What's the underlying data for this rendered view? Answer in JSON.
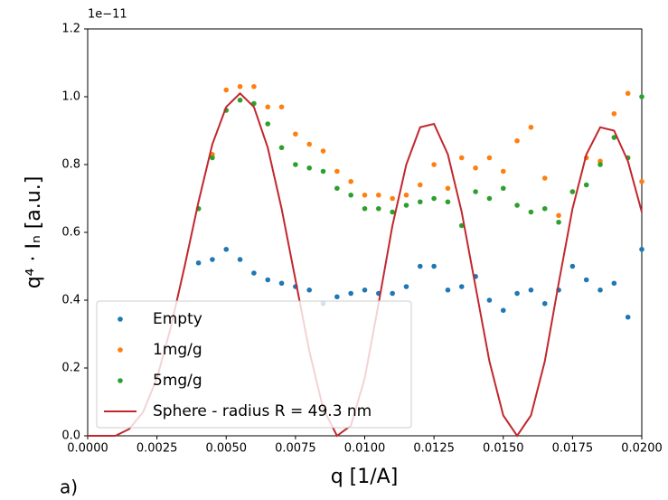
{
  "chart_data": {
    "type": "scatter",
    "annotation": "a)",
    "offset_text": "1e−11",
    "x_label": "q [1/A]",
    "y_label": "q⁴ · Iₙ [a.u.]",
    "xlim": [
      0,
      0.02
    ],
    "ylim": [
      0,
      1.2
    ],
    "xticks": [
      {
        "value": 0,
        "label": "0.0000"
      },
      0.0025,
      {
        "value": 0.005,
        "label": "0.0050"
      },
      0.0075,
      {
        "value": 0.01,
        "label": "0.0100"
      },
      0.0125,
      {
        "value": 0.015,
        "label": "0.0150"
      },
      0.0175,
      {
        "value": 0.02,
        "label": "0.0200"
      }
    ],
    "yticks": [
      {
        "value": 0,
        "label": "0.0"
      },
      0.2,
      0.4,
      0.6,
      0.8,
      {
        "value": 1,
        "label": "1.0"
      },
      1.2
    ],
    "legend": "lower left",
    "series": [
      {
        "name": "Empty",
        "color": "#1f77b4",
        "kind": "scatter",
        "x": [
          0.004,
          0.0045,
          0.005,
          0.0055,
          0.006,
          0.0065,
          0.007,
          0.0075,
          0.008,
          0.0085,
          0.009,
          0.0095,
          0.01,
          0.0105,
          0.011,
          0.0115,
          0.012,
          0.0125,
          0.013,
          0.0135,
          0.014,
          0.0145,
          0.015,
          0.0155,
          0.016,
          0.0165,
          0.017,
          0.0175,
          0.018,
          0.0185,
          0.019,
          0.0195,
          0.02
        ],
        "values": [
          0.51,
          0.52,
          0.55,
          0.52,
          0.48,
          0.46,
          0.45,
          0.44,
          0.43,
          0.39,
          0.41,
          0.42,
          0.43,
          0.42,
          0.42,
          0.44,
          0.5,
          0.5,
          0.43,
          0.44,
          0.47,
          0.4,
          0.37,
          0.42,
          0.43,
          0.39,
          0.43,
          0.5,
          0.46,
          0.43,
          0.45,
          0.35,
          0.55
        ]
      },
      {
        "name": "1mg/g",
        "color": "#ff7f0e",
        "kind": "scatter",
        "x": [
          0.004,
          0.0045,
          0.005,
          0.0055,
          0.006,
          0.0065,
          0.007,
          0.0075,
          0.008,
          0.0085,
          0.009,
          0.0095,
          0.01,
          0.0105,
          0.011,
          0.0115,
          0.012,
          0.0125,
          0.013,
          0.0135,
          0.014,
          0.0145,
          0.015,
          0.0155,
          0.016,
          0.0165,
          0.017,
          0.0175,
          0.018,
          0.0185,
          0.019,
          0.0195,
          0.02
        ],
        "values": [
          0.67,
          0.83,
          1.02,
          1.03,
          1.03,
          0.97,
          0.97,
          0.89,
          0.86,
          0.84,
          0.78,
          0.75,
          0.71,
          0.71,
          0.7,
          0.71,
          0.74,
          0.8,
          0.73,
          0.82,
          0.79,
          0.82,
          0.78,
          0.87,
          0.91,
          0.76,
          0.65,
          0.72,
          0.82,
          0.81,
          0.95,
          1.01,
          0.75
        ]
      },
      {
        "name": "5mg/g",
        "color": "#2ca02c",
        "kind": "scatter",
        "x": [
          0.004,
          0.0045,
          0.005,
          0.0055,
          0.006,
          0.0065,
          0.007,
          0.0075,
          0.008,
          0.0085,
          0.009,
          0.0095,
          0.01,
          0.0105,
          0.011,
          0.0115,
          0.012,
          0.0125,
          0.013,
          0.0135,
          0.014,
          0.0145,
          0.015,
          0.0155,
          0.016,
          0.0165,
          0.017,
          0.0175,
          0.018,
          0.0185,
          0.019,
          0.0195,
          0.02
        ],
        "values": [
          0.67,
          0.82,
          0.96,
          0.99,
          0.98,
          0.92,
          0.85,
          0.8,
          0.79,
          0.78,
          0.73,
          0.71,
          0.67,
          0.67,
          0.66,
          0.68,
          0.69,
          0.7,
          0.69,
          0.62,
          0.72,
          0.7,
          0.73,
          0.68,
          0.66,
          0.67,
          0.63,
          0.72,
          0.74,
          0.8,
          0.88,
          0.82,
          1.0
        ]
      },
      {
        "name": "Sphere - radius R = 49.3 nm",
        "color": "#c1272d",
        "kind": "line",
        "x": [
          0,
          0.0005,
          0.001,
          0.0015,
          0.002,
          0.0025,
          0.003,
          0.0035,
          0.004,
          0.0045,
          0.005,
          0.0055,
          0.006,
          0.0065,
          0.007,
          0.0075,
          0.008,
          0.0085,
          0.009,
          0.0095,
          0.01,
          0.0105,
          0.011,
          0.0115,
          0.012,
          0.0125,
          0.013,
          0.0135,
          0.014,
          0.0145,
          0.015,
          0.0155,
          0.016,
          0.0165,
          0.017,
          0.0175,
          0.018,
          0.0185,
          0.019,
          0.0195,
          0.02
        ],
        "values": [
          0,
          0,
          0,
          0.02,
          0.07,
          0.17,
          0.32,
          0.5,
          0.69,
          0.86,
          0.97,
          1.01,
          0.97,
          0.85,
          0.67,
          0.46,
          0.25,
          0.08,
          0,
          0.03,
          0.17,
          0.39,
          0.62,
          0.8,
          0.91,
          0.92,
          0.83,
          0.66,
          0.44,
          0.22,
          0.06,
          0,
          0.06,
          0.22,
          0.45,
          0.67,
          0.83,
          0.91,
          0.9,
          0.81,
          0.66
        ]
      }
    ]
  }
}
